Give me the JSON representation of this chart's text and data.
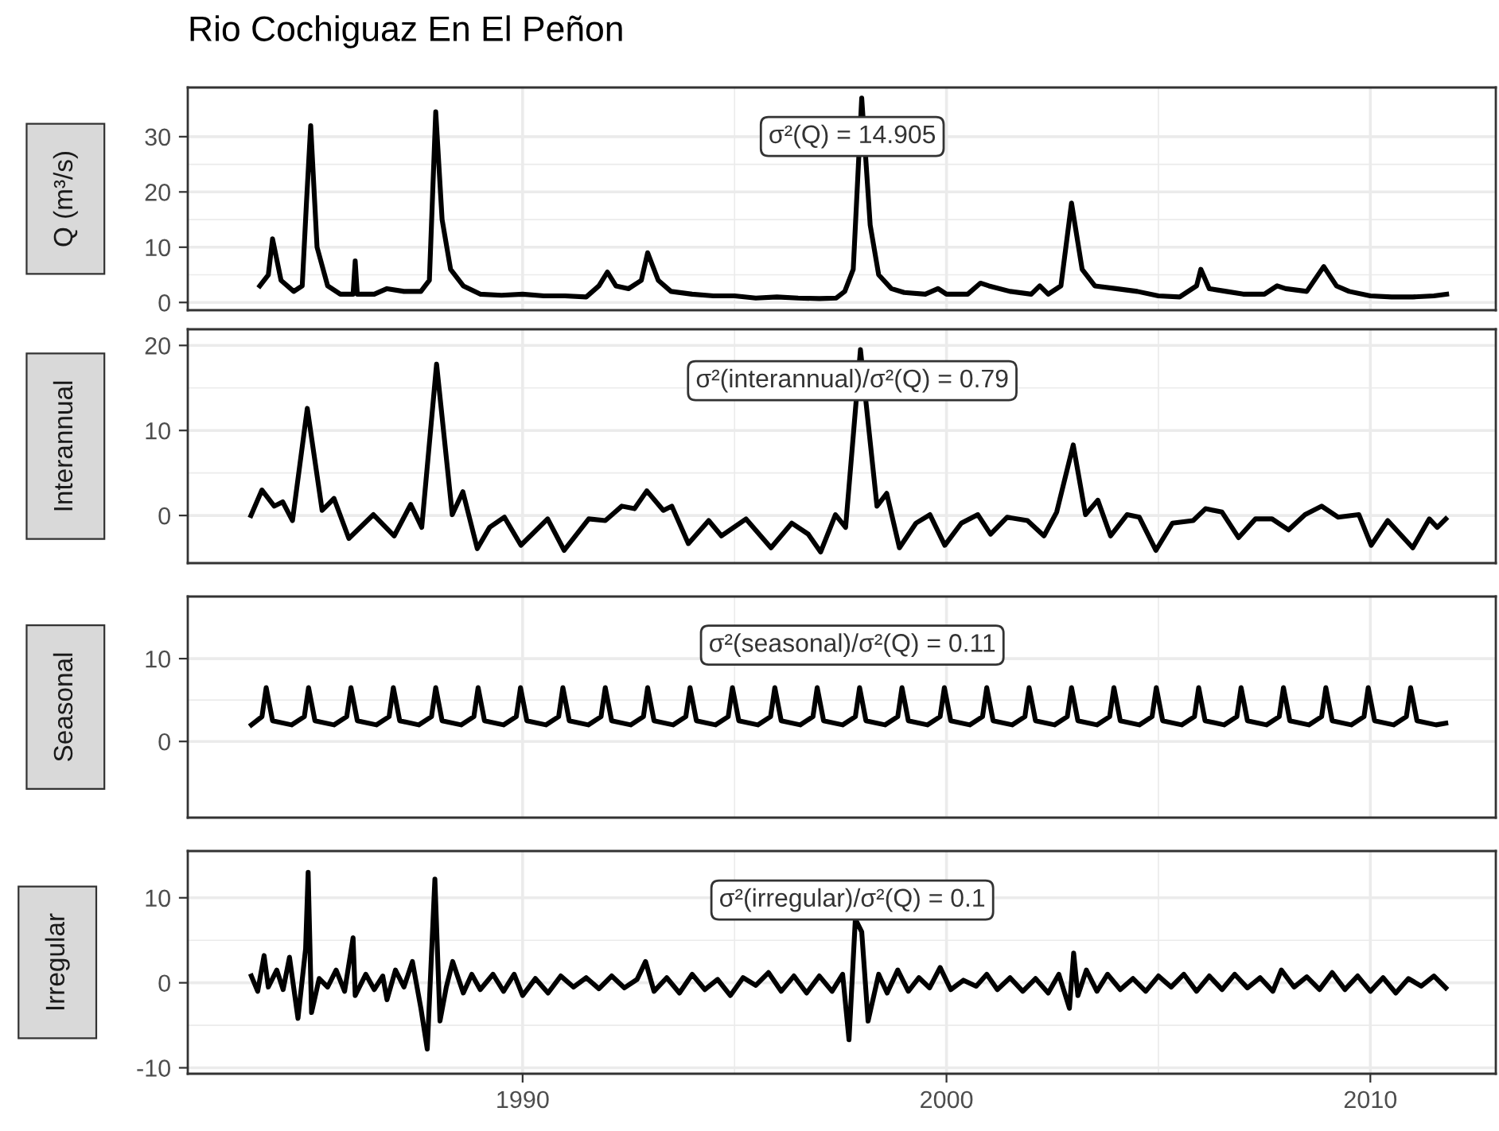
{
  "chart_data": [
    {
      "type": "line",
      "title": "Rio Cochiguaz En El Peñon",
      "ylabel": "Q (m³/s)",
      "annotations": [
        "σ²(Q) = 14.905"
      ],
      "grid": true,
      "tick_labels": "y",
      "xlim": [
        1982.1,
        2012.96
      ],
      "xticks": [
        1990,
        2000,
        2010
      ],
      "ylim": [
        -1.4,
        38.9
      ],
      "yticks": [
        0,
        10,
        20,
        30
      ],
      "series": [
        {
          "color": "#000000",
          "x": [
            1983.8,
            1984.0,
            1984.1,
            1984.3,
            1984.6,
            1984.8,
            1984.9,
            1985.0,
            1985.15,
            1985.4,
            1985.7,
            1986.0,
            1986.05,
            1986.1,
            1986.5,
            1986.8,
            1987.2,
            1987.6,
            1987.8,
            1987.95,
            1988.1,
            1988.3,
            1988.6,
            1989.0,
            1989.5,
            1990.0,
            1990.5,
            1991.0,
            1991.5,
            1991.8,
            1992.0,
            1992.2,
            1992.5,
            1992.8,
            1992.95,
            1993.2,
            1993.5,
            1994.0,
            1994.5,
            1995.0,
            1995.5,
            1996.0,
            1996.5,
            1997.0,
            1997.4,
            1997.6,
            1997.8,
            1998.0,
            1998.2,
            1998.4,
            1998.7,
            1999.0,
            1999.5,
            1999.8,
            2000.0,
            2000.5,
            2000.8,
            2001.0,
            2001.5,
            2002.0,
            2002.2,
            2002.4,
            2002.7,
            2002.95,
            2003.2,
            2003.5,
            2004.0,
            2004.5,
            2005.0,
            2005.5,
            2005.9,
            2006.0,
            2006.2,
            2006.6,
            2007.0,
            2007.5,
            2007.8,
            2008.0,
            2008.5,
            2008.9,
            2009.2,
            2009.5,
            2010.0,
            2010.5,
            2011.0,
            2011.5,
            2011.8
          ],
          "values": [
            3,
            5,
            11.5,
            4,
            2,
            3,
            18,
            32,
            10,
            3,
            1.5,
            1.5,
            7.5,
            1.5,
            1.5,
            2.5,
            2,
            2,
            4,
            34.5,
            15,
            6,
            3,
            1.5,
            1.3,
            1.5,
            1.2,
            1.2,
            1.0,
            3,
            5.5,
            3,
            2.5,
            4,
            9,
            4,
            2,
            1.5,
            1.2,
            1.2,
            0.8,
            1.0,
            0.8,
            0.7,
            0.8,
            2,
            6,
            37,
            14,
            5,
            2.5,
            1.8,
            1.5,
            2.5,
            1.5,
            1.5,
            3.5,
            3,
            2,
            1.5,
            3,
            1.5,
            3,
            18,
            6,
            3,
            2.5,
            2,
            1.2,
            1.0,
            3,
            6,
            2.5,
            2,
            1.5,
            1.5,
            3,
            2.5,
            2,
            6.5,
            3,
            2,
            1.2,
            1.0,
            1.0,
            1.2,
            1.5
          ]
        }
      ]
    },
    {
      "type": "line",
      "ylabel": "Interannual",
      "annotations": [
        "σ²(interannual)/σ²(Q) = 0.79"
      ],
      "grid": true,
      "tick_labels": "y",
      "xlim": [
        1982.1,
        2012.96
      ],
      "xticks": [
        1990,
        2000,
        2010
      ],
      "ylim": [
        -5.6,
        21.9
      ],
      "yticks": [
        0,
        10,
        20
      ],
      "series": [
        {
          "color": "#000000",
          "x": [
            1983.59,
            1983.85,
            1984.14,
            1984.34,
            1984.57,
            1984.92,
            1985.27,
            1985.55,
            1985.9,
            1986.48,
            1986.97,
            1987.36,
            1987.62,
            1987.97,
            1988.34,
            1988.59,
            1988.93,
            1989.22,
            1989.57,
            1989.96,
            1990.59,
            1990.98,
            1991.56,
            1991.95,
            1992.34,
            1992.64,
            1992.93,
            1993.32,
            1993.52,
            1993.91,
            1994.39,
            1994.69,
            1995.27,
            1995.86,
            1996.35,
            1996.74,
            1997.03,
            1997.38,
            1997.62,
            1997.97,
            1998.36,
            1998.59,
            1998.89,
            1999.28,
            1999.61,
            1999.96,
            2000.35,
            2000.74,
            2001.04,
            2001.43,
            2001.91,
            2002.3,
            2002.6,
            2002.99,
            2003.28,
            2003.57,
            2003.87,
            2004.26,
            2004.55,
            2004.94,
            2005.33,
            2005.82,
            2006.11,
            2006.5,
            2006.89,
            2007.29,
            2007.68,
            2008.07,
            2008.46,
            2008.85,
            2009.24,
            2009.73,
            2010.02,
            2010.41,
            2011.0,
            2011.39,
            2011.58,
            2011.78
          ],
          "values": [
            0,
            3.0,
            1.1,
            1.6,
            -0.6,
            12.6,
            0.6,
            2.0,
            -2.7,
            0.1,
            -2.4,
            1.3,
            -1.4,
            17.8,
            0.1,
            2.8,
            -3.9,
            -1.4,
            -0.2,
            -3.5,
            -0.4,
            -4.1,
            -0.4,
            -0.6,
            1.1,
            0.8,
            2.9,
            0.6,
            1.1,
            -3.3,
            -0.6,
            -2.4,
            -0.4,
            -3.8,
            -0.9,
            -2.2,
            -4.3,
            0.1,
            -1.4,
            19.5,
            1.1,
            2.6,
            -3.8,
            -0.9,
            0.1,
            -3.5,
            -0.9,
            0.1,
            -2.2,
            -0.2,
            -0.6,
            -2.4,
            0.4,
            8.3,
            0.1,
            1.8,
            -2.4,
            0.1,
            -0.2,
            -4.1,
            -0.9,
            -0.6,
            0.8,
            0.4,
            -2.6,
            -0.4,
            -0.4,
            -1.7,
            0.1,
            1.1,
            -0.2,
            0.1,
            -3.5,
            -0.6,
            -3.8,
            -0.4,
            -1.4,
            -0.4
          ]
        }
      ]
    },
    {
      "type": "line",
      "ylabel": "Seasonal",
      "annotations": [
        "σ²(seasonal)/σ²(Q) = 0.11"
      ],
      "grid": true,
      "tick_labels": "y",
      "xlim": [
        1982.1,
        2012.96
      ],
      "xticks": [
        1990,
        2000,
        2010
      ],
      "ylim": [
        -9.2,
        17.5
      ],
      "yticks": [
        0,
        10
      ],
      "series": [
        {
          "color": "#000000",
          "x": [
            1983.6,
            1983.85,
            1983.95,
            1984.1,
            1984.55,
            1984.85,
            1984.95,
            1985.1,
            1985.55,
            1985.85,
            1985.95,
            1986.1,
            1986.55,
            1986.85,
            1986.95,
            1987.1,
            1987.55,
            1987.85,
            1987.95,
            1988.1,
            1988.55,
            1988.85,
            1988.95,
            1989.1,
            1989.55,
            1989.85,
            1989.95,
            1990.1,
            1990.55,
            1990.85,
            1990.95,
            1991.1,
            1991.55,
            1991.85,
            1991.95,
            1992.1,
            1992.55,
            1992.85,
            1992.95,
            1993.1,
            1993.55,
            1993.85,
            1993.95,
            1994.1,
            1994.55,
            1994.85,
            1994.95,
            1995.1,
            1995.55,
            1995.85,
            1995.95,
            1996.1,
            1996.55,
            1996.85,
            1996.95,
            1997.1,
            1997.55,
            1997.85,
            1997.95,
            1998.1,
            1998.55,
            1998.85,
            1998.95,
            1999.1,
            1999.55,
            1999.85,
            1999.95,
            2000.1,
            2000.55,
            2000.85,
            2000.95,
            2001.1,
            2001.55,
            2001.85,
            2001.95,
            2002.1,
            2002.55,
            2002.85,
            2002.95,
            2003.1,
            2003.55,
            2003.85,
            2003.95,
            2004.1,
            2004.55,
            2004.85,
            2004.95,
            2005.1,
            2005.55,
            2005.85,
            2005.95,
            2006.1,
            2006.55,
            2006.85,
            2006.95,
            2007.1,
            2007.55,
            2007.85,
            2007.95,
            2008.1,
            2008.55,
            2008.85,
            2008.95,
            2009.1,
            2009.55,
            2009.85,
            2009.95,
            2010.1,
            2010.55,
            2010.85,
            2010.95,
            2011.1,
            2011.55,
            2011.78
          ],
          "values": [
            2,
            3,
            6.5,
            2.5,
            2,
            3,
            6.5,
            2.5,
            2,
            3,
            6.5,
            2.5,
            2,
            3,
            6.5,
            2.5,
            2,
            3,
            6.5,
            2.5,
            2,
            3,
            6.5,
            2.5,
            2,
            3,
            6.5,
            2.5,
            2,
            3,
            6.5,
            2.5,
            2,
            3,
            6.5,
            2.5,
            2,
            3,
            6.5,
            2.5,
            2,
            3,
            6.5,
            2.5,
            2,
            3,
            6.5,
            2.5,
            2,
            3,
            6.5,
            2.5,
            2,
            3,
            6.5,
            2.5,
            2,
            3,
            6.5,
            2.5,
            2,
            3,
            6.5,
            2.5,
            2,
            3,
            6.5,
            2.5,
            2,
            3,
            6.5,
            2.5,
            2,
            3,
            6.5,
            2.5,
            2,
            3,
            6.5,
            2.5,
            2,
            3,
            6.5,
            2.5,
            2,
            3,
            6.5,
            2.5,
            2,
            3,
            6.5,
            2.5,
            2,
            3,
            6.5,
            2.5,
            2,
            3,
            6.5,
            2.5,
            2,
            3,
            6.5,
            2.5,
            2,
            3,
            6.5,
            2.5,
            2,
            3,
            6.5,
            2.5,
            2,
            2.2
          ]
        }
      ]
    },
    {
      "type": "line",
      "ylabel": "Irregular",
      "annotations": [
        "σ²(irregular)/σ²(Q) = 0.1"
      ],
      "grid": true,
      "xlim": [
        1982.1,
        2012.96
      ],
      "xticks": [
        1990,
        2000,
        2010
      ],
      "ylim": [
        -10.7,
        15.5
      ],
      "yticks": [
        -10,
        0,
        10
      ],
      "series": [
        {
          "color": "#000000",
          "x": [
            1983.6,
            1983.75,
            1983.9,
            1984.0,
            1984.2,
            1984.35,
            1984.5,
            1984.7,
            1984.88,
            1984.94,
            1985.02,
            1985.2,
            1985.4,
            1985.6,
            1985.8,
            1986.0,
            1986.05,
            1986.3,
            1986.5,
            1986.7,
            1986.8,
            1987.0,
            1987.2,
            1987.4,
            1987.6,
            1987.75,
            1987.93,
            1988.05,
            1988.2,
            1988.35,
            1988.6,
            1988.8,
            1989.0,
            1989.3,
            1989.55,
            1989.8,
            1990.0,
            1990.3,
            1990.6,
            1990.9,
            1991.2,
            1991.5,
            1991.8,
            1992.1,
            1992.4,
            1992.7,
            1992.9,
            1993.1,
            1993.4,
            1993.7,
            1994.0,
            1994.3,
            1994.6,
            1994.9,
            1995.2,
            1995.5,
            1995.8,
            1996.1,
            1996.4,
            1996.7,
            1997.0,
            1997.3,
            1997.55,
            1997.7,
            1997.85,
            1998.0,
            1998.15,
            1998.4,
            1998.6,
            1998.85,
            1999.1,
            1999.35,
            1999.6,
            1999.85,
            2000.1,
            2000.4,
            2000.7,
            2000.95,
            2001.2,
            2001.5,
            2001.8,
            2002.1,
            2002.4,
            2002.65,
            2002.9,
            2003.0,
            2003.1,
            2003.3,
            2003.55,
            2003.8,
            2004.1,
            2004.4,
            2004.7,
            2005.0,
            2005.3,
            2005.6,
            2005.9,
            2006.2,
            2006.5,
            2006.8,
            2007.1,
            2007.4,
            2007.7,
            2007.9,
            2008.2,
            2008.5,
            2008.8,
            2009.1,
            2009.4,
            2009.7,
            2010.0,
            2010.3,
            2010.6,
            2010.9,
            2011.2,
            2011.5,
            2011.78
          ],
          "values": [
            0.8,
            -1.0,
            3.2,
            -0.5,
            1.5,
            -0.8,
            3.0,
            -4.2,
            4.0,
            13.0,
            -3.5,
            0.5,
            -0.5,
            1.5,
            -1.0,
            5.3,
            -1.5,
            1.0,
            -0.8,
            0.8,
            -2.0,
            1.5,
            -0.5,
            2.5,
            -3.0,
            -7.8,
            12.2,
            -4.5,
            -0.5,
            2.5,
            -1.2,
            1.0,
            -0.8,
            1.0,
            -1.0,
            1.0,
            -1.5,
            0.5,
            -1.2,
            0.8,
            -0.5,
            0.6,
            -0.7,
            0.8,
            -0.6,
            0.4,
            2.5,
            -1.0,
            0.6,
            -1.2,
            1.0,
            -0.8,
            0.4,
            -1.5,
            0.6,
            -0.3,
            1.2,
            -1.0,
            0.8,
            -1.2,
            0.8,
            -1.0,
            1.0,
            -6.7,
            7.5,
            6.0,
            -4.5,
            1.0,
            -1.2,
            1.5,
            -1.0,
            0.6,
            -0.6,
            1.8,
            -0.8,
            0.3,
            -0.4,
            1.0,
            -0.8,
            0.6,
            -1.0,
            0.5,
            -1.2,
            1.0,
            -3.0,
            3.5,
            -1.5,
            1.5,
            -1.0,
            1.0,
            -0.8,
            0.5,
            -1.0,
            0.8,
            -0.5,
            1.0,
            -1.0,
            0.8,
            -0.8,
            1.0,
            -0.6,
            0.6,
            -1.0,
            1.5,
            -0.5,
            0.7,
            -0.8,
            1.2,
            -0.8,
            0.8,
            -1.0,
            0.6,
            -1.2,
            0.5,
            -0.4,
            0.8,
            -0.6
          ]
        }
      ]
    }
  ]
}
